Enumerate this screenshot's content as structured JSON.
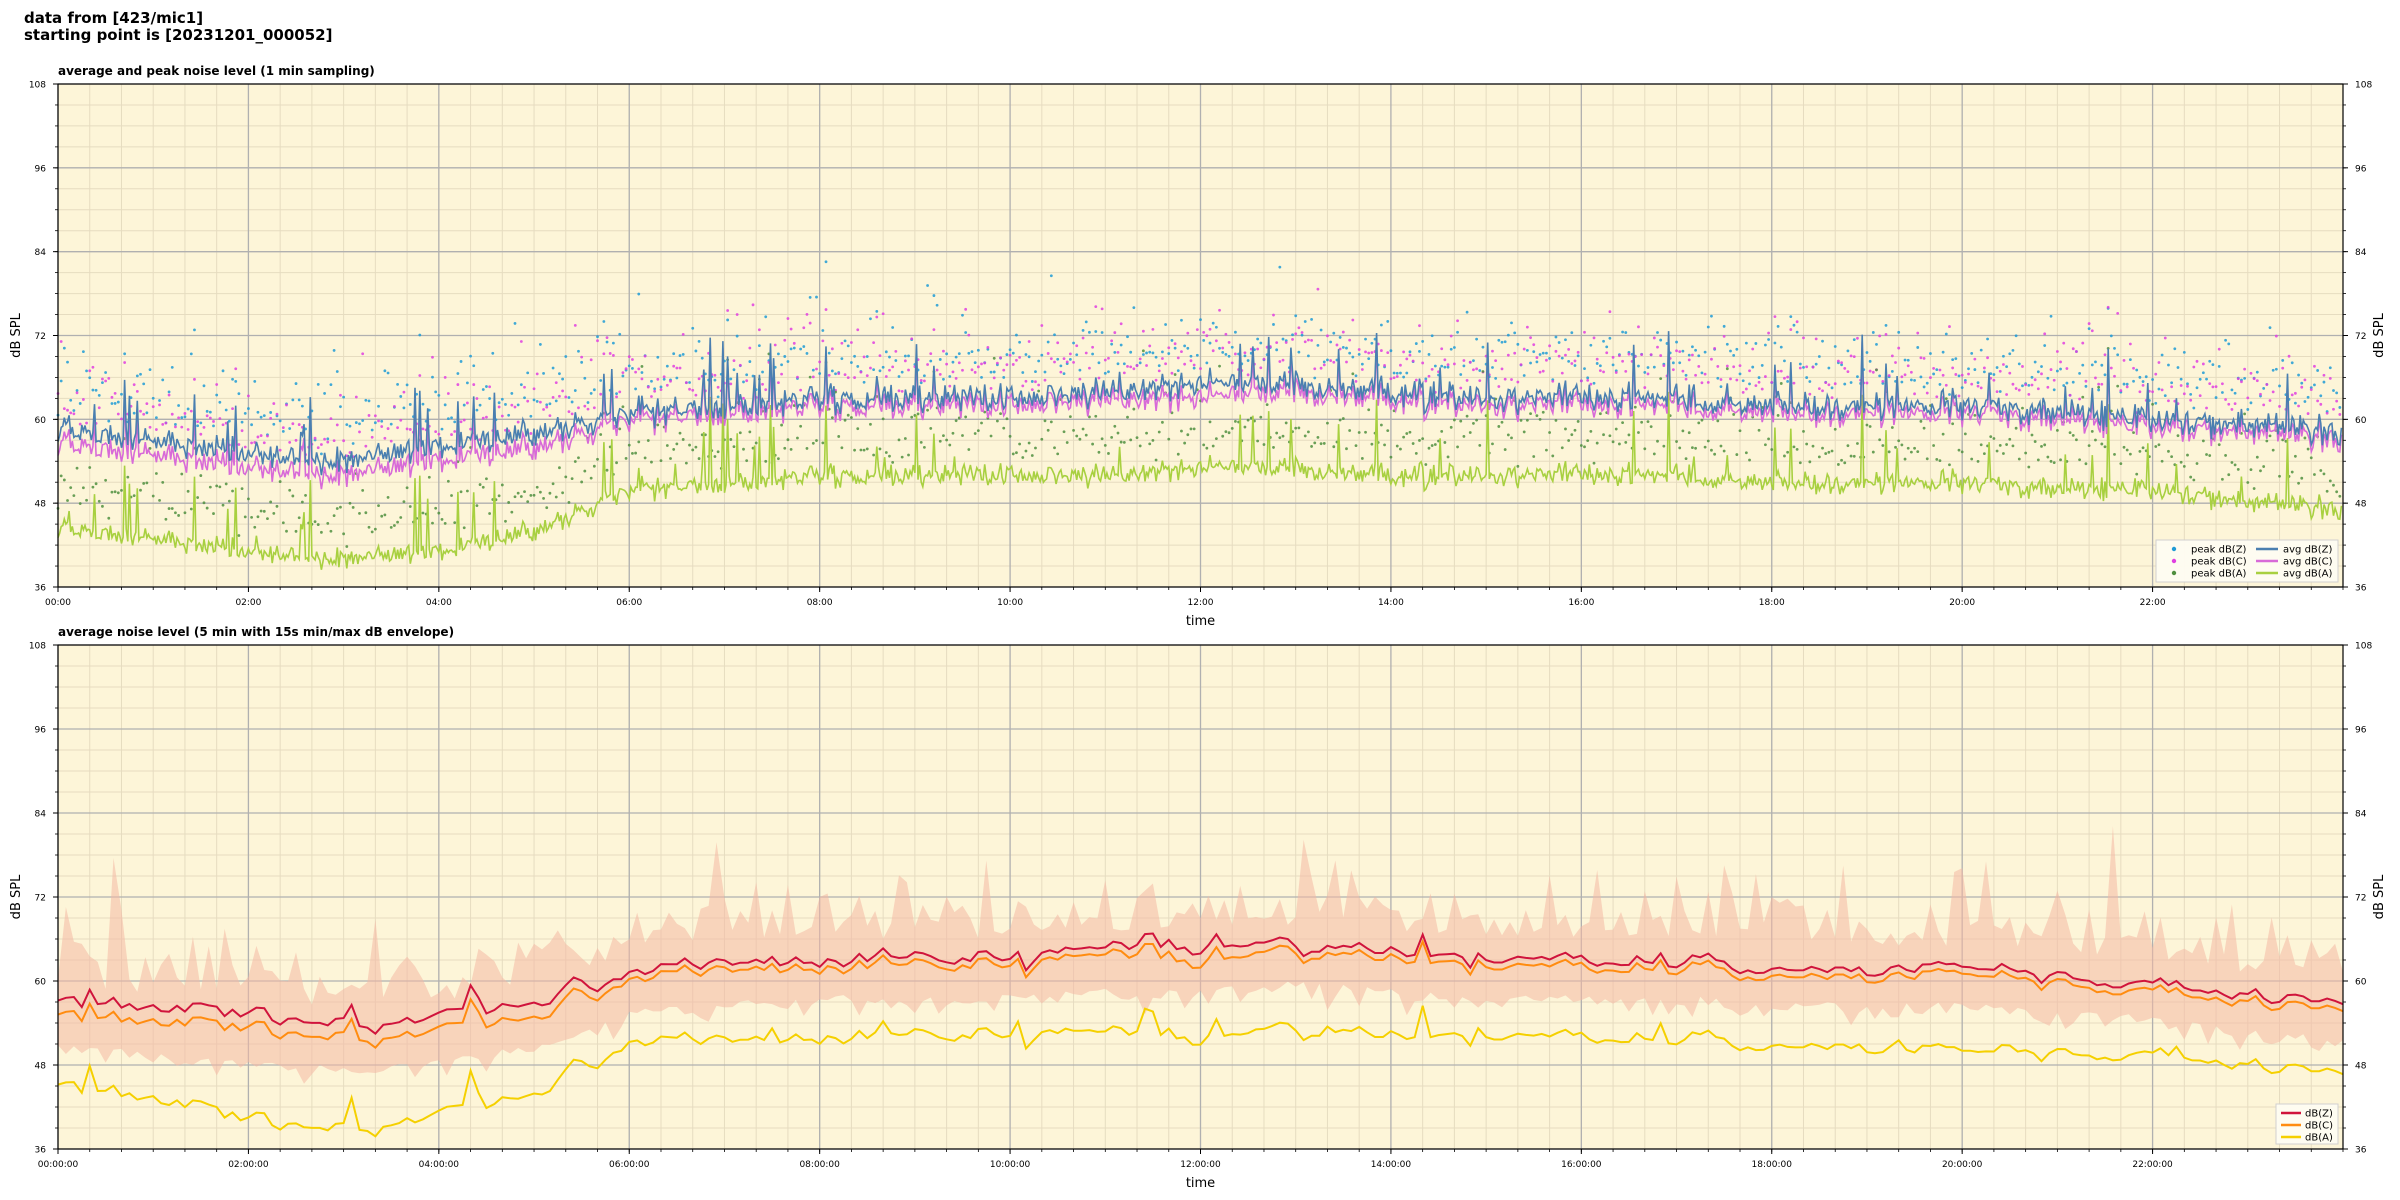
{
  "header": {
    "line1": "data from [423/mic1]",
    "line2": "starting point is [20231201_000052]"
  },
  "colors": {
    "plot_bg": "#fdf5d8",
    "peak_z": "#1f9bd6",
    "peak_c": "#e040e0",
    "peak_a": "#4f8f3f",
    "avg_z": "#4a7fb0",
    "avg_c": "#d86ad8",
    "avg_a": "#a8d040",
    "env": "#f4b8a4",
    "dbz": "#d0143c",
    "dbc": "#ff8c10",
    "dba": "#f5d000"
  },
  "chart_data": [
    {
      "type": "line",
      "title": "average and peak noise level (1 min sampling)",
      "xlabel": "time",
      "ylabel": "dB SPL",
      "ylim": [
        36,
        108
      ],
      "yticks": [
        "36",
        "48",
        "60",
        "72",
        "84",
        "96",
        "108"
      ],
      "xlim_hours": [
        0,
        24
      ],
      "xticks": [
        "00:00",
        "02:00",
        "04:00",
        "06:00",
        "08:00",
        "10:00",
        "12:00",
        "14:00",
        "16:00",
        "18:00",
        "20:00",
        "22:00"
      ],
      "grid": true,
      "legend_position": "bottom-right",
      "legend": [
        "peak dB(Z)",
        "peak dB(C)",
        "peak dB(A)",
        "avg dB(Z)",
        "avg dB(C)",
        "avg dB(A)"
      ],
      "series_profile_hours": [
        0,
        1,
        2,
        3,
        4,
        5,
        6,
        7,
        8,
        9,
        10,
        11,
        12,
        13,
        14,
        15,
        16,
        17,
        18,
        19,
        20,
        21,
        22,
        23,
        24
      ],
      "series": [
        {
          "name": "avg dB(Z)",
          "values": [
            58,
            57,
            55,
            54,
            56,
            58,
            61,
            62,
            63,
            63,
            63,
            64,
            65,
            65,
            64,
            63,
            63,
            63,
            62,
            62,
            62,
            61,
            60,
            59,
            58
          ]
        },
        {
          "name": "avg dB(C)",
          "values": [
            56,
            55,
            53,
            52,
            54,
            56,
            60,
            61,
            62,
            62,
            62,
            63,
            63,
            64,
            63,
            62,
            62,
            62,
            61,
            61,
            61,
            60,
            59,
            58,
            57
          ]
        },
        {
          "name": "avg dB(A)",
          "values": [
            44,
            43,
            41,
            40,
            41,
            44,
            50,
            51,
            52,
            52,
            52,
            52,
            53,
            53,
            52,
            52,
            52,
            52,
            51,
            51,
            51,
            50,
            50,
            48,
            47
          ]
        }
      ]
    },
    {
      "type": "line",
      "title": "average noise level (5 min with 15s min/max dB envelope)",
      "xlabel": "time",
      "ylabel": "dB SPL",
      "ylim": [
        36,
        108
      ],
      "yticks": [
        "36",
        "48",
        "60",
        "72",
        "84",
        "96",
        "108"
      ],
      "xlim_hours": [
        0,
        24
      ],
      "xticks": [
        "00:00:00",
        "02:00:00",
        "04:00:00",
        "06:00:00",
        "08:00:00",
        "10:00:00",
        "12:00:00",
        "14:00:00",
        "16:00:00",
        "18:00:00",
        "20:00:00",
        "22:00:00"
      ],
      "grid": true,
      "legend_position": "bottom-right",
      "legend": [
        "dB(Z)",
        "dB(C)",
        "dB(A)"
      ],
      "series_profile_hours": [
        0,
        1,
        2,
        3,
        4,
        5,
        6,
        7,
        8,
        9,
        10,
        11,
        12,
        13,
        14,
        15,
        16,
        17,
        18,
        19,
        20,
        21,
        22,
        23,
        24
      ],
      "series": [
        {
          "name": "dB(Z)",
          "values": [
            57,
            56,
            55,
            54,
            55,
            57,
            61,
            62,
            63,
            63,
            63,
            64,
            65,
            65,
            64,
            63,
            63,
            63,
            62,
            62,
            62,
            61,
            60,
            58,
            57
          ]
        },
        {
          "name": "dB(C)",
          "values": [
            55,
            54,
            53,
            52,
            53,
            55,
            60,
            61,
            62,
            62,
            62,
            63,
            63,
            64,
            63,
            62,
            62,
            62,
            61,
            61,
            61,
            60,
            59,
            57,
            56
          ]
        },
        {
          "name": "dB(A)",
          "values": [
            45,
            43,
            40,
            39,
            41,
            44,
            51,
            51,
            52,
            52,
            52,
            52,
            52,
            53,
            52,
            52,
            52,
            52,
            51,
            51,
            50,
            50,
            50,
            48,
            47
          ]
        }
      ]
    }
  ]
}
